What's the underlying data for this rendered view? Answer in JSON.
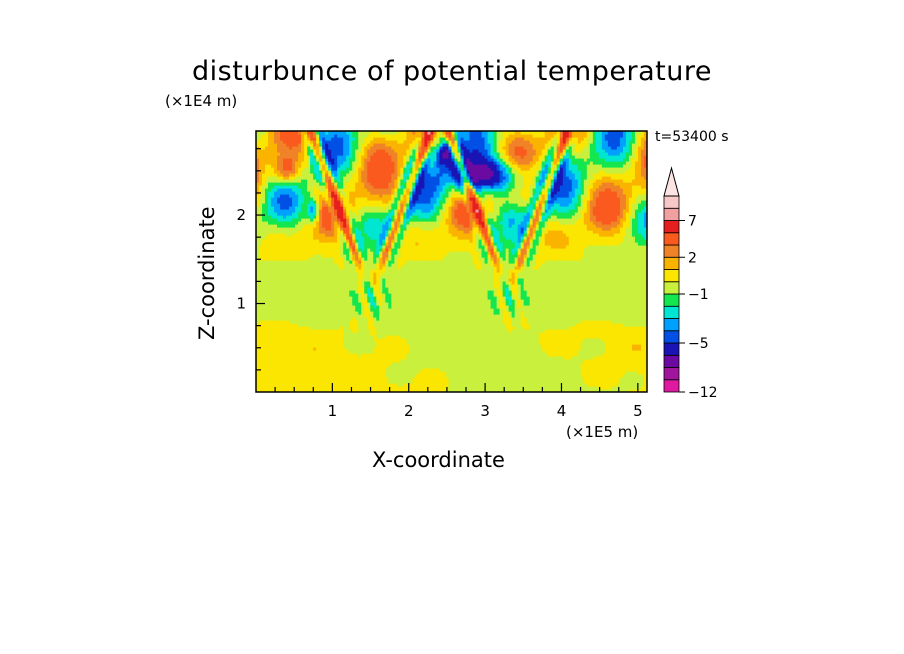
{
  "chart_data": {
    "type": "heatmap",
    "title": "disturbunce of potential temperature",
    "xlabel": "X-coordinate",
    "ylabel": "Z-coordinate",
    "x_unit": "(×1E5 m)",
    "y_unit": "(×1E4 m)",
    "time_label": "t=53400 s",
    "xlim": [
      0,
      5.12
    ],
    "ylim": [
      0,
      2.95
    ],
    "x_ticks": [
      "1",
      "2",
      "3",
      "4",
      "5"
    ],
    "y_ticks": [
      "1",
      "2"
    ],
    "colorbar": {
      "levels": [
        -12,
        -11,
        -9,
        -7,
        -5,
        -4,
        -3,
        -2,
        -1,
        0,
        1,
        2,
        3,
        5,
        7,
        9,
        11
      ],
      "labels": [
        "-12",
        "-5",
        "-1",
        "2",
        "7"
      ],
      "colors": [
        "#e019a0",
        "#a0149e",
        "#6a0aa0",
        "#1a14b4",
        "#0050e6",
        "#00a0ff",
        "#00e6d2",
        "#14e650",
        "#c8f03c",
        "#fae600",
        "#fab400",
        "#f08228",
        "#fa5a1e",
        "#e61e1e",
        "#f0a0a0",
        "#f8c8c8"
      ],
      "extend_max": true
    }
  }
}
